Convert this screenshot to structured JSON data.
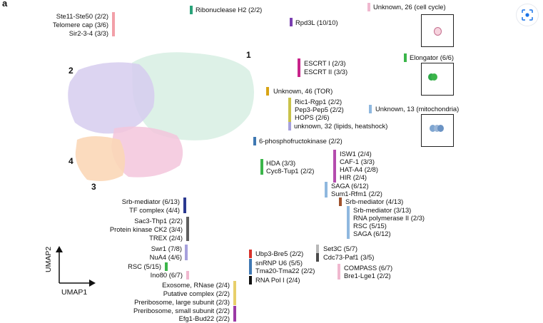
{
  "panel_letter": "a",
  "axes": {
    "x_label": "UMAP1",
    "y_label": "UMAP2"
  },
  "clusters": {
    "c1": "1",
    "c2": "2",
    "c3": "3",
    "c4": "4"
  },
  "labels": {
    "ste11": "Ste11-Ste50 (2/2)",
    "telomere": "Telomere cap (3/6)",
    "sir": "Sir2-3-4 (3/3)",
    "rnaseh2": "Ribonuclease H2 (2/2)",
    "rpd3l": "Rpd3L (10/10)",
    "unk26": "Unknown, 26 (cell cycle)",
    "escrt1": "ESCRT I (2/3)",
    "escrt2": "ESCRT II (3/3)",
    "elongator": "Elongator (6/6)",
    "unk46": "Unknown, 46 (TOR)",
    "ric1": "Ric1-Rgp1 (2/2)",
    "pep3": "Pep3-Pep5 (2/2)",
    "hops": "HOPS (2/6)",
    "unk13": "Unknown, 13 (mitochondria)",
    "unk32": "unknown, 32 (lipids, heatshock)",
    "pfk": "6-phosphofructokinase (2/2)",
    "isw1": "ISW1 (2/4)",
    "caf1": "CAF-1 (3/3)",
    "hata4": "HAT-A4 (2/8)",
    "hir": "HIR (2/4)",
    "hda": "HDA (3/3)",
    "cyc8": "Cyc8-Tup1 (2/2)",
    "saga1": "SAGA (6/12)",
    "sum1": "Sum1-Rfm1 (2/2)",
    "srbL": "Srb-mediator (6/13)",
    "tfc": "TF complex (4/4)",
    "srbR1": "Srb-mediator (4/13)",
    "srbR2": "Srb-mediator (3/13)",
    "rnapol2": "RNA  polymerase II (2/3)",
    "rsc1": "RSC (5/15)",
    "saga2": "SAGA (6/12)",
    "sac3": "Sac3-Thp1 (2/2)",
    "ck2": "Protein kinase CK2 (3/4)",
    "trex": "TREX (2/4)",
    "swr1": "Swr1 (7/8)",
    "nua4": "NuA4 (4/6)",
    "set3c": "Set3C (5/7)",
    "cdc73": "Cdc73-Paf1 (3/5)",
    "compass": "COMPASS (6/7)",
    "bre1": "Bre1-Lge1 (2/2)",
    "rsc2": "RSC (5/15)",
    "ubp3": "Ubp3-Bre5 (2/2)",
    "snrnp": "snRNP U6 (5/5)",
    "tma20": "Tma20-Tma22 (2/2)",
    "ino80": "Ino80 (6/7)",
    "rnapol1": "RNA Pol I (2/4)",
    "exosome": "Exosome, RNase (2/4)",
    "putative": "Putative complex (2/2)",
    "preribL": "Preribosome, large subunit (2/3)",
    "preribS": "Preribosome, small subunit (2/2)",
    "efg1": "Efg1-Bud22 (2/2)"
  },
  "colors": {
    "c1_mint": "#bfe6d5",
    "c2_purple": "#7a3fb0",
    "c3_pink": "#d9579a",
    "c4_peach": "#f2b37a",
    "orange": "#e6962e",
    "yellow": "#f2de3c",
    "steelblue": "#3f78b2",
    "green": "#3bb54a",
    "magenta": "#c8238a",
    "lavender": "#a6a0dc",
    "gray": "#7a7a7a",
    "red": "#d8322b",
    "brown": "#8b5a2b",
    "olive": "#c9c24a",
    "lightblue": "#8fb8df",
    "pale_pink": "#f0b8cf"
  },
  "icons": {
    "lens": "lens-search-icon"
  }
}
